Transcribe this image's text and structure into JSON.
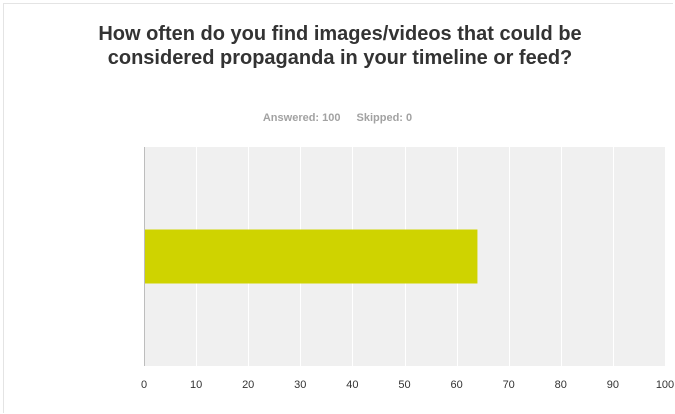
{
  "header": {
    "title": "How often do you find images/videos that could be considered propaganda in your timeline or feed?",
    "answered": "Answered: 100",
    "skipped": "Skipped: 0"
  },
  "chart_data": {
    "type": "bar",
    "orientation": "horizontal",
    "title": "How often do you find images/videos that could be considered propaganda in your timeline or feed?",
    "categories": [
      ""
    ],
    "values": [
      64
    ],
    "xlim": [
      0,
      100
    ],
    "x_ticks": [
      0,
      10,
      20,
      30,
      40,
      50,
      60,
      70,
      80,
      90,
      100
    ],
    "grid": true,
    "colors": {
      "bar": "#cfd300",
      "plot_background": "#f0f0f0",
      "grid": "#ffffff",
      "axis": "#bdbdbd"
    }
  }
}
